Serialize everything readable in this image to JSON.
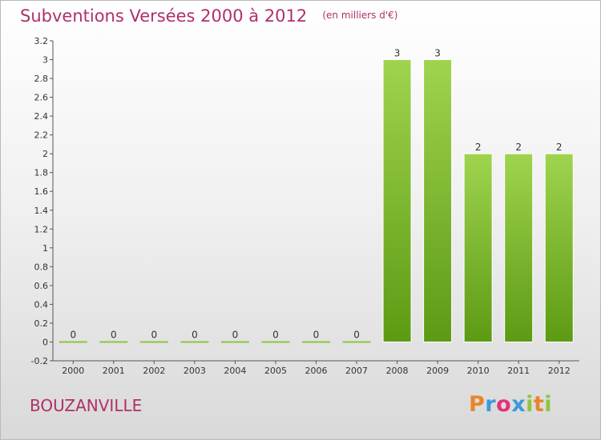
{
  "header": {
    "title": "Subventions Versées 2000 à 2012",
    "subtitle": "(en milliers d'€)"
  },
  "commune": "BOUZANVILLE",
  "logo": {
    "letters": [
      "P",
      "r",
      "o",
      "x",
      "i",
      "t",
      "i"
    ]
  },
  "colors": {
    "title": "#b0306a",
    "bar_light": "#9fd44f",
    "bar_dark": "#5d9a14",
    "zero_bar": "#8cc63f"
  },
  "chart_data": {
    "type": "bar",
    "title": "Subventions Versées 2000 à 2012",
    "subtitle": "(en milliers d'€)",
    "categories": [
      "2000",
      "2001",
      "2002",
      "2003",
      "2004",
      "2005",
      "2006",
      "2007",
      "2008",
      "2009",
      "2010",
      "2011",
      "2012"
    ],
    "values": [
      0,
      0,
      0,
      0,
      0,
      0,
      0,
      0,
      3,
      3,
      2,
      2,
      2
    ],
    "data_labels": [
      "0",
      "0",
      "0",
      "0",
      "0",
      "0",
      "0",
      "0",
      "3",
      "3",
      "2",
      "2",
      "2"
    ],
    "ylim": [
      -0.2,
      3.2
    ],
    "yticks": [
      -0.2,
      0,
      0.2,
      0.4,
      0.6,
      0.8,
      1,
      1.2,
      1.4,
      1.6,
      1.8,
      2,
      2.2,
      2.4,
      2.6,
      2.8,
      3,
      3.2
    ],
    "ytick_labels": [
      "-0.2",
      "0",
      "0.2",
      "0.4",
      "0.6",
      "0.8",
      "1",
      "1.2",
      "1.4",
      "1.6",
      "1.8",
      "2",
      "2.2",
      "2.4",
      "2.6",
      "2.8",
      "3",
      "3.2"
    ],
    "xlabel": "",
    "ylabel": "",
    "grid": false,
    "legend": "none"
  }
}
